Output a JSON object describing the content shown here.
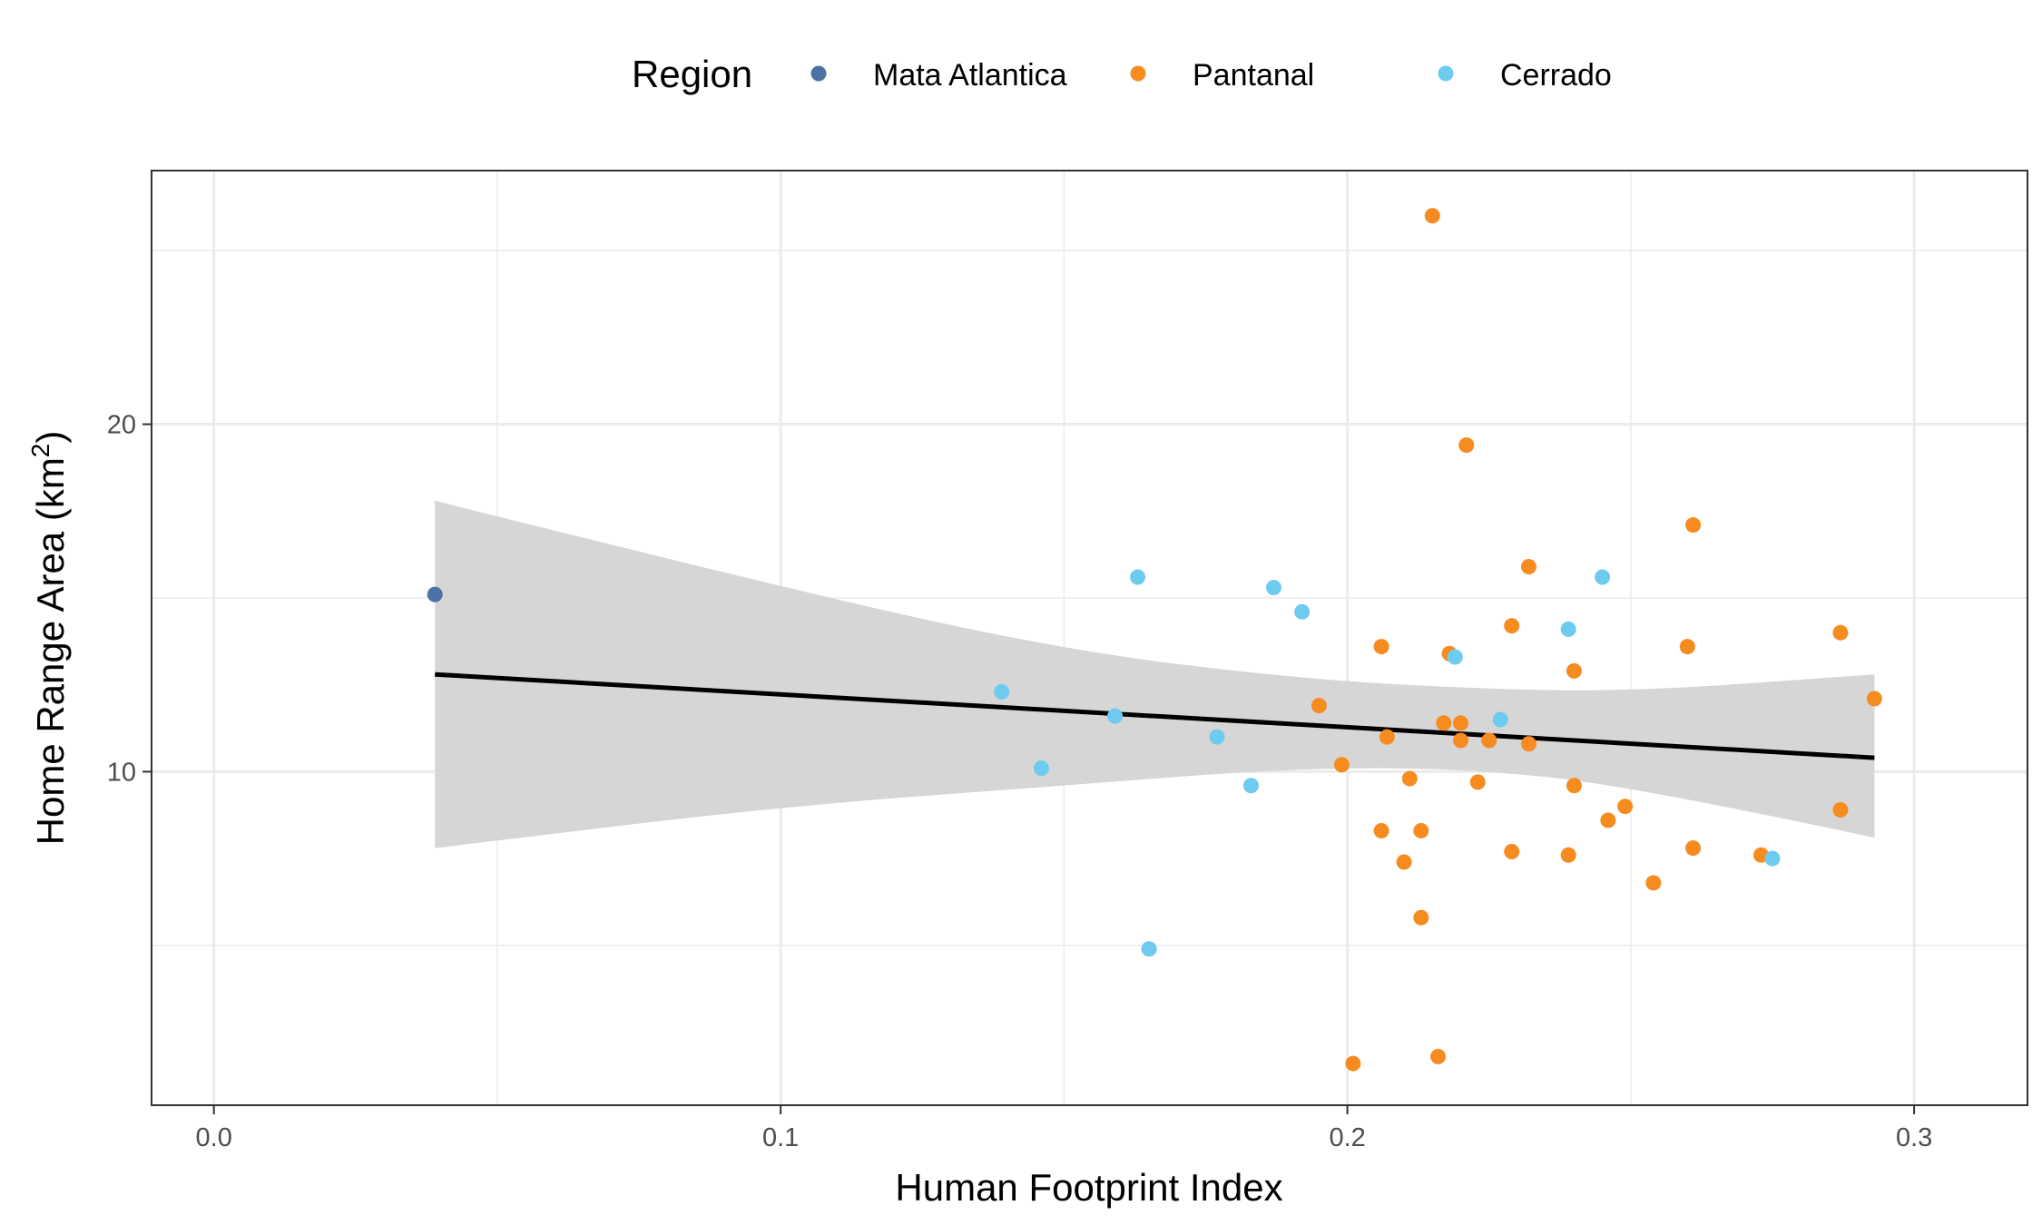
{
  "chart_data": {
    "type": "scatter",
    "xlabel": "Human Footprint Index",
    "ylabel_main": "Home Range Area (km",
    "ylabel_sup": "2",
    "ylabel_close": ")",
    "xlim": [
      -0.011,
      0.32
    ],
    "ylim": [
      0.4,
      27.3
    ],
    "x_ticks": [
      0.0,
      0.1,
      0.2,
      0.3
    ],
    "x_tick_labels": [
      "0.0",
      "0.1",
      "0.2",
      "0.3"
    ],
    "x_minor": [
      0.05,
      0.15,
      0.25
    ],
    "y_ticks": [
      10,
      20
    ],
    "y_tick_labels": [
      "10",
      "20"
    ],
    "y_minor": [
      5,
      15,
      25
    ],
    "grid": true,
    "legend": {
      "title": "Region",
      "position": "top",
      "entries": [
        {
          "name": "Mata Atlantica",
          "color": "#4a72a4"
        },
        {
          "name": "Pantanal",
          "color": "#f68b1f"
        },
        {
          "name": "Cerrado",
          "color": "#6dcbef"
        }
      ]
    },
    "series": [
      {
        "name": "Mata Atlantica",
        "color": "#4a72a4",
        "points": [
          [
            0.039,
            15.1
          ]
        ]
      },
      {
        "name": "Pantanal",
        "color": "#f68b1f",
        "points": [
          [
            0.215,
            26.0
          ],
          [
            0.221,
            19.4
          ],
          [
            0.261,
            17.1
          ],
          [
            0.232,
            15.9
          ],
          [
            0.229,
            14.2
          ],
          [
            0.287,
            14.0
          ],
          [
            0.206,
            13.6
          ],
          [
            0.26,
            13.6
          ],
          [
            0.218,
            13.4
          ],
          [
            0.24,
            12.9
          ],
          [
            0.293,
            12.1
          ],
          [
            0.195,
            11.9
          ],
          [
            0.217,
            11.4
          ],
          [
            0.22,
            11.4
          ],
          [
            0.207,
            11.0
          ],
          [
            0.22,
            10.9
          ],
          [
            0.225,
            10.9
          ],
          [
            0.232,
            10.8
          ],
          [
            0.199,
            10.2
          ],
          [
            0.211,
            9.8
          ],
          [
            0.223,
            9.7
          ],
          [
            0.24,
            9.6
          ],
          [
            0.249,
            9.0
          ],
          [
            0.287,
            8.9
          ],
          [
            0.246,
            8.6
          ],
          [
            0.206,
            8.3
          ],
          [
            0.213,
            8.3
          ],
          [
            0.229,
            7.7
          ],
          [
            0.261,
            7.8
          ],
          [
            0.239,
            7.6
          ],
          [
            0.273,
            7.6
          ],
          [
            0.21,
            7.4
          ],
          [
            0.254,
            6.8
          ],
          [
            0.213,
            5.8
          ],
          [
            0.216,
            1.8
          ],
          [
            0.201,
            1.6
          ]
        ]
      },
      {
        "name": "Cerrado",
        "color": "#6dcbef",
        "points": [
          [
            0.163,
            15.6
          ],
          [
            0.245,
            15.6
          ],
          [
            0.187,
            15.3
          ],
          [
            0.192,
            14.6
          ],
          [
            0.239,
            14.1
          ],
          [
            0.219,
            13.3
          ],
          [
            0.139,
            12.3
          ],
          [
            0.159,
            11.6
          ],
          [
            0.227,
            11.5
          ],
          [
            0.177,
            11.0
          ],
          [
            0.146,
            10.1
          ],
          [
            0.183,
            9.6
          ],
          [
            0.275,
            7.5
          ],
          [
            0.165,
            4.9
          ]
        ]
      }
    ],
    "trend": {
      "x": [
        0.039,
        0.293
      ],
      "y": [
        12.8,
        10.4
      ],
      "ribbon": {
        "x": [
          0.039,
          0.1,
          0.15,
          0.19,
          0.22,
          0.25,
          0.293
        ],
        "lo": [
          7.8,
          9.0,
          9.6,
          10.1,
          10.1,
          9.6,
          8.1
        ],
        "hi": [
          17.8,
          15.3,
          13.5,
          12.7,
          12.4,
          12.3,
          12.8
        ]
      }
    }
  }
}
